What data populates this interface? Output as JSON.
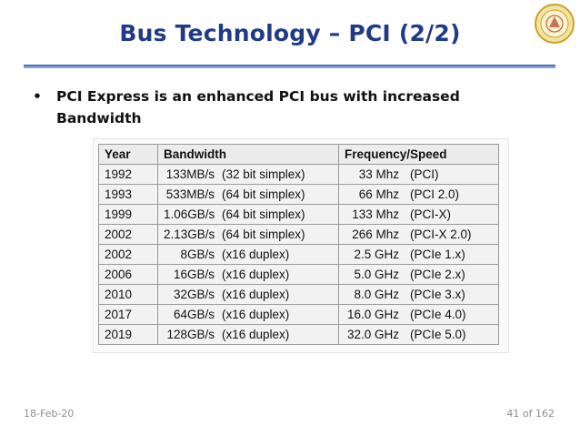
{
  "slide": {
    "title": "Bus Technology – PCI (2/2)",
    "bullet": "•",
    "bullet_text": "PCI Express is an enhanced PCI bus with increased Bandwidth"
  },
  "table": {
    "headers": [
      "Year",
      "Bandwidth",
      "Frequency/Speed"
    ],
    "rows": [
      {
        "year": "1992",
        "bw": "133MB/s",
        "bw_mode": "(32 bit simplex)",
        "freq": "33 Mhz",
        "std": "(PCI)"
      },
      {
        "year": "1993",
        "bw": "533MB/s",
        "bw_mode": "(64 bit simplex)",
        "freq": "66 Mhz",
        "std": "(PCI 2.0)"
      },
      {
        "year": "1999",
        "bw": "1.06GB/s",
        "bw_mode": "(64 bit simplex)",
        "freq": "133 Mhz",
        "std": "(PCI-X)"
      },
      {
        "year": "2002",
        "bw": "2.13GB/s",
        "bw_mode": "(64 bit simplex)",
        "freq": "266 Mhz",
        "std": "(PCI-X 2.0)"
      },
      {
        "year": "2002",
        "bw": "8GB/s",
        "bw_mode": "(x16 duplex)",
        "freq": "2.5 GHz",
        "std": "(PCIe 1.x)"
      },
      {
        "year": "2006",
        "bw": "16GB/s",
        "bw_mode": "(x16 duplex)",
        "freq": "5.0 GHz",
        "std": "(PCIe 2.x)"
      },
      {
        "year": "2010",
        "bw": "32GB/s",
        "bw_mode": "(x16 duplex)",
        "freq": "8.0 GHz",
        "std": "(PCIe 3.x)"
      },
      {
        "year": "2017",
        "bw": "64GB/s",
        "bw_mode": "(x16 duplex)",
        "freq": "16.0 GHz",
        "std": "(PCIe 4.0)"
      },
      {
        "year": "2019",
        "bw": "128GB/s",
        "bw_mode": "(x16 duplex)",
        "freq": "32.0 GHz",
        "std": "(PCIe 5.0)"
      }
    ]
  },
  "footer": {
    "date": "18-Feb-20",
    "page": "41 of 162"
  },
  "logo": {
    "icon": "university-seal-icon",
    "colors": {
      "ring": "#c9a227",
      "inner": "#f3e3a0",
      "accent": "#b5472b"
    }
  },
  "colors": {
    "title": "#1f3b86",
    "rule": "#6f8fcf"
  }
}
